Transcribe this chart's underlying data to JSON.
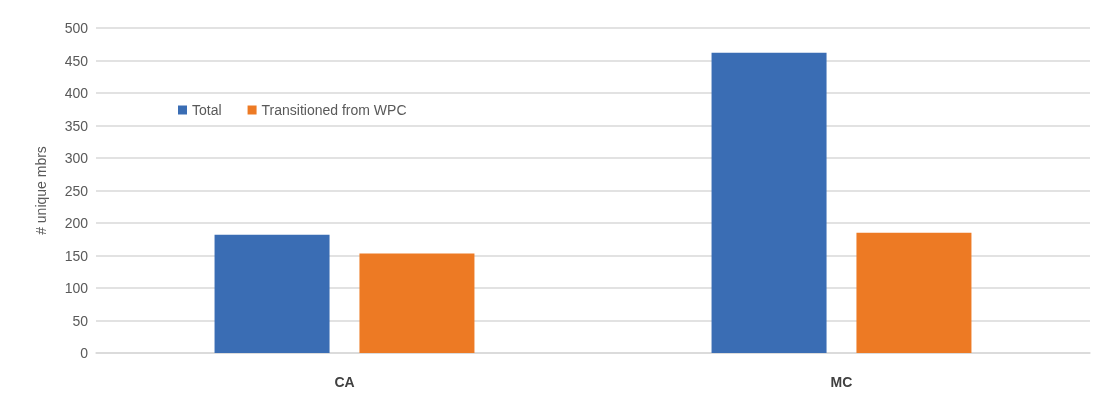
{
  "chart_data": {
    "type": "bar",
    "ylabel": "# unique mbrs",
    "categories": [
      "CA",
      "MC"
    ],
    "series": [
      {
        "name": "Total",
        "color": "#3a6db4",
        "values": [
          182,
          462
        ]
      },
      {
        "name": "Transitioned from WPC",
        "color": "#ed7a24",
        "values": [
          153,
          185
        ]
      }
    ],
    "ylim": [
      0,
      500
    ],
    "yticks": [
      0,
      50,
      100,
      150,
      200,
      250,
      300,
      350,
      400,
      450,
      500
    ],
    "grid": "y",
    "legend": "top left"
  }
}
